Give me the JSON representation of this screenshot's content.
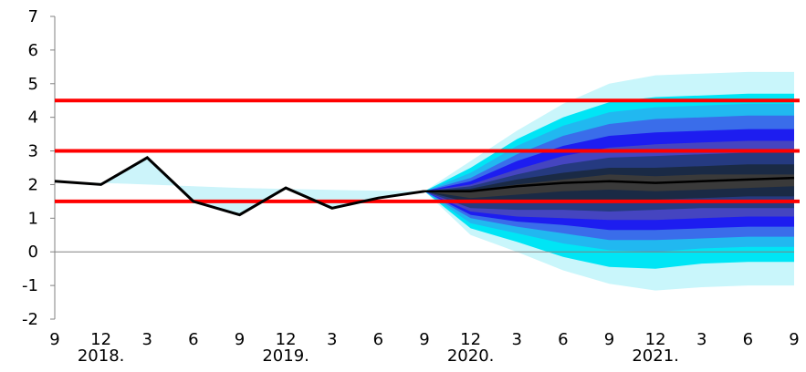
{
  "chart_data": {
    "type": "area",
    "title": "",
    "xlabel": "",
    "ylabel": "",
    "ylim": [
      -2,
      7
    ],
    "yticks": [
      -2,
      -1,
      0,
      1,
      2,
      3,
      4,
      5,
      6,
      7
    ],
    "grid": false,
    "legend": "none",
    "x_tick_labels": [
      "9",
      "12",
      "3",
      "6",
      "9",
      "12",
      "3",
      "6",
      "9",
      "12",
      "3",
      "6",
      "9",
      "12",
      "3",
      "6",
      "9"
    ],
    "year_labels": [
      {
        "label": "2018.",
        "at_index": 1
      },
      {
        "label": "2019.",
        "at_index": 5
      },
      {
        "label": "2020.",
        "at_index": 9
      },
      {
        "label": "2021.",
        "at_index": 13
      }
    ],
    "series": [
      {
        "kind": "actual",
        "color": "#000000",
        "values": [
          2.1,
          2.0,
          2.8,
          1.5,
          1.1,
          1.9,
          1.3,
          1.6,
          1.8
        ]
      },
      {
        "kind": "target-band-shading",
        "color": "#ccf4fa",
        "values": [
          2.1,
          2.05,
          2.0,
          1.95,
          1.9,
          1.87,
          1.84,
          1.82,
          1.8
        ]
      },
      {
        "kind": "central-projection",
        "color": "#000000",
        "start_index": 8,
        "values": [
          1.8,
          1.8,
          1.95,
          2.05,
          2.1,
          2.05,
          2.1,
          2.15,
          2.2
        ]
      }
    ],
    "fan_bands": {
      "start_index": 8,
      "colors": [
        "#c9f6fb",
        "#00e5f5",
        "#21b8f0",
        "#3a6dea",
        "#1d1df0",
        "#4545c0",
        "#253a80",
        "#1a2a45",
        "#3a3a3a"
      ],
      "upper": [
        [
          1.8,
          2.7,
          3.6,
          4.4,
          5.0,
          5.25,
          5.3,
          5.35,
          5.35
        ],
        [
          1.8,
          2.5,
          3.35,
          4.0,
          4.45,
          4.6,
          4.65,
          4.7,
          4.7
        ],
        [
          1.8,
          2.35,
          3.15,
          3.75,
          4.15,
          4.3,
          4.35,
          4.4,
          4.4
        ],
        [
          1.8,
          2.2,
          2.9,
          3.45,
          3.8,
          3.95,
          4.0,
          4.05,
          4.05
        ],
        [
          1.8,
          2.1,
          2.7,
          3.15,
          3.45,
          3.55,
          3.6,
          3.65,
          3.65
        ],
        [
          1.8,
          2.0,
          2.45,
          2.85,
          3.1,
          3.2,
          3.25,
          3.3,
          3.3
        ],
        [
          1.8,
          1.95,
          2.3,
          2.6,
          2.8,
          2.85,
          2.9,
          2.95,
          2.95
        ],
        [
          1.8,
          1.88,
          2.15,
          2.35,
          2.5,
          2.5,
          2.55,
          2.6,
          2.6
        ],
        [
          1.8,
          1.82,
          2.0,
          2.15,
          2.3,
          2.25,
          2.3,
          2.3,
          2.3
        ]
      ],
      "lower": [
        [
          1.8,
          0.5,
          0.0,
          -0.55,
          -0.95,
          -1.15,
          -1.05,
          -1.0,
          -1.0
        ],
        [
          1.8,
          0.7,
          0.3,
          -0.15,
          -0.45,
          -0.5,
          -0.35,
          -0.3,
          -0.3
        ],
        [
          1.8,
          0.85,
          0.55,
          0.25,
          0.05,
          0.0,
          0.1,
          0.15,
          0.15
        ],
        [
          1.8,
          1.0,
          0.75,
          0.55,
          0.35,
          0.35,
          0.4,
          0.45,
          0.45
        ],
        [
          1.8,
          1.1,
          0.9,
          0.8,
          0.65,
          0.65,
          0.7,
          0.75,
          0.75
        ],
        [
          1.8,
          1.2,
          1.05,
          1.0,
          0.95,
          0.95,
          1.0,
          1.05,
          1.05
        ],
        [
          1.8,
          1.3,
          1.25,
          1.25,
          1.2,
          1.25,
          1.3,
          1.3,
          1.3
        ],
        [
          1.8,
          1.45,
          1.45,
          1.5,
          1.5,
          1.55,
          1.6,
          1.65,
          1.65
        ],
        [
          1.8,
          1.6,
          1.7,
          1.8,
          1.85,
          1.8,
          1.85,
          1.9,
          1.95
        ]
      ]
    },
    "reference_lines": [
      {
        "y": 4.5,
        "color": "#ff0000"
      },
      {
        "y": 3.0,
        "color": "#ff0000"
      },
      {
        "y": 1.5,
        "color": "#ff0000"
      }
    ]
  }
}
